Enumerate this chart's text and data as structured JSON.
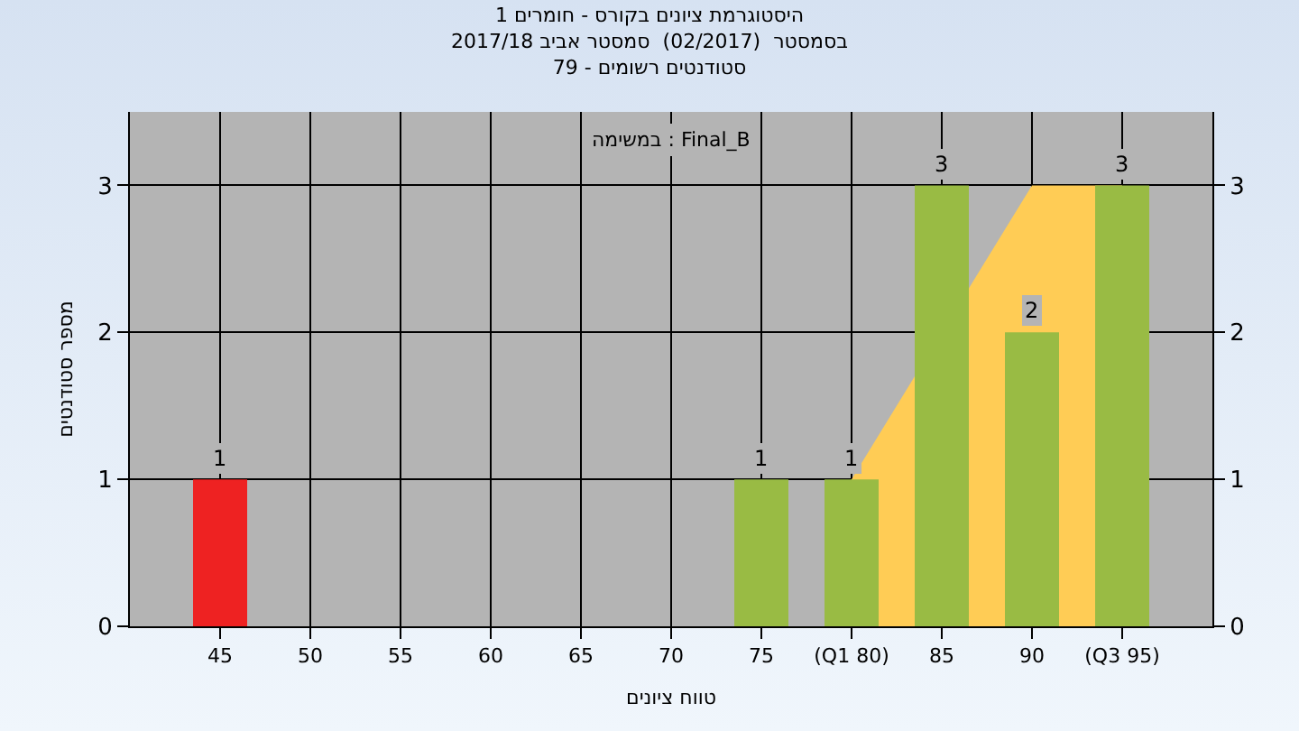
{
  "chart_data": {
    "type": "bar",
    "title": "היסטוגרמת ציונים בקורס - חומרים 1",
    "subtitle": "בסמסטר  (02/2017)  סמסטר אביב 2017/18\nסטודנטים רשומים - 79",
    "xlabel": "טווח ציונים",
    "ylabel": "מספר סטודנטים",
    "categories": [
      "45",
      "50",
      "55",
      "60",
      "65",
      "70",
      "75",
      "(Q1 80)",
      "85",
      "90",
      "(Q3 95)"
    ],
    "series": [
      {
        "type": "area",
        "color": "#ffcc55",
        "x": [
          "(Q1 80)",
          "90",
          "(Q3 95)"
        ],
        "values": [
          1,
          3,
          3
        ]
      },
      {
        "axis": "y2",
        "colors": [
          "#ee2222",
          "#99bb44",
          "#99bb44",
          "#99bb44",
          "#99bb44",
          "#99bb44",
          "#99bb44",
          "#99bb44",
          "#99bb44",
          "#99bb44",
          "#99bb44"
        ],
        "values": [
          1,
          0,
          0,
          0,
          0,
          0,
          1,
          1,
          3,
          2,
          3
        ],
        "value_labels": [
          "1",
          null,
          null,
          null,
          null,
          null,
          "1",
          "1",
          "3",
          "2",
          "3"
        ]
      }
    ],
    "annotations": [
      "במשימה : Final_B"
    ],
    "ylim": [
      0,
      3.5
    ],
    "yticks": [
      0,
      1,
      2,
      3
    ],
    "y2lim": [
      0,
      3.5
    ],
    "y2ticks": [
      0,
      1,
      2,
      3
    ],
    "grid": true
  }
}
